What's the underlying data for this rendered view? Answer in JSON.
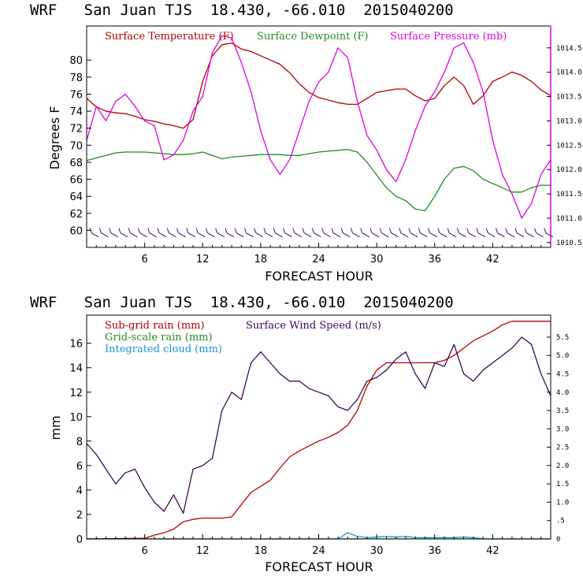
{
  "colors": {
    "temperature": "#b20000",
    "dewpoint": "#228b22",
    "pressure": "#e000e0",
    "wind": "#3a0a5a",
    "subgrid_rain": "#b20000",
    "gridscale_rain": "#228b22",
    "cloud": "#1e8fe0",
    "axis": "#000000"
  },
  "chart_data": [
    {
      "type": "line",
      "title": "WRF   San Juan TJS  18.430, -66.010  2015040200",
      "xlabel": "FORECAST HOUR",
      "ylabel": "Degrees F",
      "xlim": [
        0,
        48
      ],
      "ylim": [
        58,
        84
      ],
      "y2lim": [
        1010.4,
        1014.95
      ],
      "xticks": [
        6,
        12,
        18,
        24,
        30,
        36,
        42
      ],
      "yticks": [
        60,
        62,
        64,
        66,
        68,
        70,
        72,
        74,
        76,
        78,
        80
      ],
      "y2ticks": [
        "1010.5",
        "1011.0",
        "1011.5",
        "1012.0",
        "1012.5",
        "1013.0",
        "1013.5",
        "1014.0",
        "1014.5"
      ],
      "y2tick_values": [
        1010.5,
        1011.0,
        1011.5,
        1012.0,
        1012.5,
        1013.0,
        1013.5,
        1014.0,
        1014.5
      ],
      "series": [
        {
          "name": "Surface Temperature (F)",
          "axis": "left",
          "color_key": "temperature",
          "x": [
            0,
            1,
            2,
            3,
            4,
            5,
            6,
            7,
            8,
            9,
            10,
            11,
            12,
            13,
            14,
            15,
            16,
            17,
            18,
            19,
            20,
            21,
            22,
            23,
            24,
            25,
            26,
            27,
            28,
            29,
            30,
            31,
            32,
            33,
            34,
            35,
            36,
            37,
            38,
            39,
            40,
            41,
            42,
            43,
            44,
            45,
            46,
            47,
            48
          ],
          "values": [
            75.5,
            74.5,
            74.0,
            73.8,
            73.7,
            73.4,
            73.0,
            72.8,
            72.5,
            72.3,
            72.0,
            73.0,
            77.5,
            80.5,
            81.8,
            82.0,
            81.3,
            81.0,
            80.5,
            80.0,
            79.5,
            78.5,
            77.2,
            76.2,
            75.6,
            75.3,
            75.0,
            74.8,
            74.8,
            75.5,
            76.2,
            76.4,
            76.6,
            76.6,
            75.8,
            75.2,
            75.5,
            77.0,
            78.0,
            77.0,
            74.8,
            75.8,
            77.5,
            78.0,
            78.6,
            78.2,
            77.5,
            76.5,
            75.8
          ]
        },
        {
          "name": "Surface Dewpoint (F)",
          "axis": "left",
          "color_key": "dewpoint",
          "x": [
            0,
            1,
            2,
            3,
            4,
            5,
            6,
            7,
            8,
            9,
            10,
            11,
            12,
            13,
            14,
            15,
            16,
            17,
            18,
            19,
            20,
            21,
            22,
            23,
            24,
            25,
            26,
            27,
            28,
            29,
            30,
            31,
            32,
            33,
            34,
            35,
            36,
            37,
            38,
            39,
            40,
            41,
            42,
            43,
            44,
            45,
            46,
            47,
            48
          ],
          "values": [
            68.2,
            68.5,
            68.8,
            69.1,
            69.2,
            69.2,
            69.2,
            69.1,
            69.0,
            68.9,
            68.9,
            69.0,
            69.2,
            68.8,
            68.4,
            68.6,
            68.7,
            68.8,
            68.9,
            68.9,
            68.9,
            68.8,
            68.8,
            69.0,
            69.2,
            69.3,
            69.4,
            69.5,
            69.2,
            68.0,
            66.5,
            65.0,
            64.0,
            63.5,
            62.5,
            62.3,
            64.0,
            66.0,
            67.3,
            67.5,
            67.0,
            66.0,
            65.5,
            65.0,
            64.5,
            64.5,
            65.0,
            65.3,
            65.3
          ]
        },
        {
          "name": "Surface Pressure (mb)",
          "axis": "right",
          "color_key": "pressure",
          "x": [
            0,
            1,
            2,
            3,
            4,
            5,
            6,
            7,
            8,
            9,
            10,
            11,
            12,
            13,
            14,
            15,
            16,
            17,
            18,
            19,
            20,
            21,
            22,
            23,
            24,
            25,
            26,
            27,
            28,
            29,
            30,
            31,
            32,
            33,
            34,
            35,
            36,
            37,
            38,
            39,
            40,
            41,
            42,
            43,
            44,
            45,
            46,
            47,
            48
          ],
          "values": [
            1012.6,
            1013.3,
            1013.0,
            1013.4,
            1013.55,
            1013.3,
            1013.0,
            1012.9,
            1012.2,
            1012.3,
            1012.6,
            1013.2,
            1013.5,
            1014.4,
            1014.75,
            1014.7,
            1014.2,
            1013.6,
            1012.8,
            1012.2,
            1011.9,
            1012.2,
            1012.8,
            1013.4,
            1013.8,
            1014.0,
            1014.5,
            1014.3,
            1013.4,
            1012.7,
            1012.4,
            1012.0,
            1011.75,
            1012.2,
            1012.8,
            1013.3,
            1013.6,
            1014.0,
            1014.5,
            1014.6,
            1014.2,
            1013.6,
            1012.6,
            1011.9,
            1011.5,
            1011.0,
            1011.3,
            1011.9,
            1012.2
          ]
        }
      ],
      "wind_barbs": "present along bottom of plot"
    },
    {
      "type": "line",
      "title": "WRF   San Juan TJS  18.430, -66.010  2015040200",
      "xlabel": "FORECAST HOUR",
      "ylabel": "mm",
      "xlim": [
        0,
        48
      ],
      "ylim": [
        0,
        18.3
      ],
      "y2lim": [
        0,
        6.1
      ],
      "xticks": [
        6,
        12,
        18,
        24,
        30,
        36,
        42
      ],
      "yticks": [
        0,
        2,
        4,
        6,
        8,
        10,
        12,
        14,
        16
      ],
      "y2ticks": [
        "0",
        ".5",
        "1.0",
        "1.5",
        "2.0",
        "2.5",
        "3.0",
        "3.5",
        "4.0",
        "4.5",
        "5.0",
        "5.5"
      ],
      "y2tick_values": [
        0,
        0.5,
        1.0,
        1.5,
        2.0,
        2.5,
        3.0,
        3.5,
        4.0,
        4.5,
        5.0,
        5.5
      ],
      "series": [
        {
          "name": "Sub-grid rain (mm)",
          "axis": "left",
          "color_key": "subgrid_rain",
          "x": [
            0,
            6,
            7,
            8,
            9,
            10,
            11,
            12,
            13,
            14,
            15,
            16,
            17,
            18,
            19,
            20,
            21,
            22,
            23,
            24,
            25,
            26,
            27,
            28,
            29,
            30,
            31,
            32,
            33,
            34,
            35,
            36,
            37,
            38,
            39,
            40,
            41,
            42,
            43,
            44,
            45,
            46,
            47,
            48
          ],
          "values": [
            0,
            0.05,
            0.3,
            0.5,
            0.8,
            1.4,
            1.6,
            1.7,
            1.7,
            1.7,
            1.8,
            2.8,
            3.8,
            4.3,
            4.8,
            5.8,
            6.7,
            7.2,
            7.6,
            8.0,
            8.3,
            8.7,
            9.3,
            10.5,
            12.5,
            13.8,
            14.4,
            14.4,
            14.4,
            14.4,
            14.4,
            14.4,
            14.6,
            15.0,
            15.6,
            16.2,
            16.6,
            17.0,
            17.5,
            17.8,
            17.8,
            17.8,
            17.8,
            17.8
          ]
        },
        {
          "name": "Grid-scale rain (mm)",
          "axis": "left",
          "color_key": "gridscale_rain",
          "x": [
            0,
            48
          ],
          "values": [
            0,
            0
          ]
        },
        {
          "name": "Integrated cloud (mm)",
          "axis": "left",
          "color_key": "cloud",
          "x": [
            0,
            26,
            27,
            28,
            29,
            30,
            31,
            32,
            33,
            34,
            35,
            36,
            37,
            38,
            39,
            40,
            41,
            48
          ],
          "values": [
            0,
            0,
            0.5,
            0.2,
            0.1,
            0.15,
            0.2,
            0.15,
            0.2,
            0.1,
            0.1,
            0.1,
            0.1,
            0.1,
            0.15,
            0.1,
            0,
            0
          ]
        },
        {
          "name": "Surface Wind Speed (m/s)",
          "axis": "right",
          "color_key": "wind",
          "x": [
            0,
            1,
            2,
            3,
            4,
            5,
            6,
            7,
            8,
            9,
            10,
            11,
            12,
            13,
            14,
            15,
            16,
            17,
            18,
            19,
            20,
            21,
            22,
            23,
            24,
            25,
            26,
            27,
            28,
            29,
            30,
            31,
            32,
            33,
            34,
            35,
            36,
            37,
            38,
            39,
            40,
            41,
            42,
            43,
            44,
            45,
            46,
            47,
            48
          ],
          "values": [
            2.6,
            2.3,
            1.9,
            1.5,
            1.8,
            1.9,
            1.4,
            1.0,
            0.75,
            1.2,
            0.7,
            1.9,
            2.0,
            2.2,
            3.5,
            4.0,
            3.8,
            4.8,
            5.1,
            4.8,
            4.5,
            4.3,
            4.3,
            4.1,
            4.0,
            3.9,
            3.6,
            3.5,
            3.8,
            4.3,
            4.4,
            4.6,
            4.9,
            5.1,
            4.5,
            4.1,
            4.8,
            4.7,
            5.3,
            4.5,
            4.3,
            4.6,
            4.8,
            5.0,
            5.2,
            5.5,
            5.3,
            4.5,
            3.9
          ]
        }
      ]
    }
  ]
}
